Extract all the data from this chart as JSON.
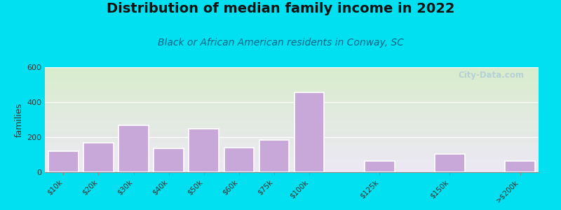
{
  "title": "Distribution of median family income in 2022",
  "subtitle": "Black or African American residents in Conway, SC",
  "ylabel": "families",
  "categories": [
    "$10k",
    "$20k",
    "$30k",
    "$40k",
    "$50k",
    "$60k",
    "$75k",
    "$100k",
    "$125k",
    "$150k",
    ">$200k"
  ],
  "values": [
    120,
    170,
    270,
    135,
    250,
    140,
    185,
    455,
    65,
    105,
    65
  ],
  "bar_color": "#c8a8d8",
  "bar_edgecolor": "#ffffff",
  "ylim": [
    0,
    600
  ],
  "yticks": [
    0,
    200,
    400,
    600
  ],
  "background_outer": "#00e0f0",
  "grad_top": "#d8edcc",
  "grad_bottom": "#ede8f5",
  "title_fontsize": 14,
  "subtitle_fontsize": 10,
  "ylabel_fontsize": 9,
  "watermark_text": "City-Data.com",
  "x_positions": [
    0,
    1,
    2,
    3,
    4,
    5,
    6,
    7,
    9,
    11,
    13
  ],
  "bar_width": 0.85
}
